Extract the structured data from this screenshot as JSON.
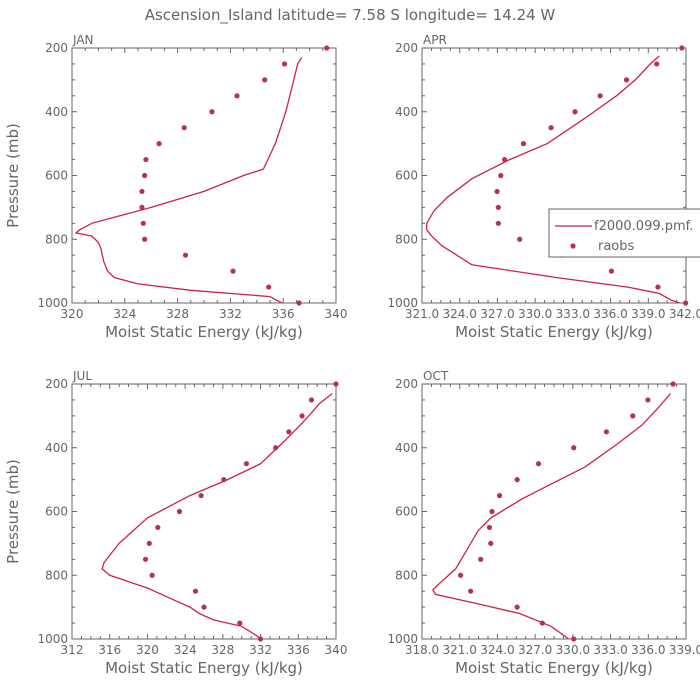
{
  "title": "Ascension_Island   latitude= 7.58 S longitude= 14.24 W",
  "colors": {
    "model": "#cc2244",
    "obs": "#b83058",
    "axis": "#666666"
  },
  "legend": {
    "panel": 1,
    "entries": [
      {
        "label": "f2000.099.pmf.",
        "marker": "line"
      },
      {
        "label": "raobs",
        "marker": "dot"
      }
    ]
  },
  "chart_data": [
    {
      "type": "line",
      "panel_label": "JAN",
      "xlabel": "Moist Static Energy (kJ/kg)",
      "ylabel": "Pressure (mb)",
      "xlim": [
        320,
        340
      ],
      "ylim": [
        1000,
        200
      ],
      "xticks": [
        320,
        324,
        328,
        332,
        336,
        340
      ],
      "xtick_labels": [
        "320",
        "324",
        "328",
        "332",
        "336",
        "340"
      ],
      "yticks": [
        200,
        400,
        600,
        800,
        1000
      ],
      "ytick_labels": [
        "200",
        "400",
        "600",
        "800",
        "1000"
      ],
      "series": [
        {
          "name": "f2000.099.pmf.",
          "style": "line",
          "x": [
            336.0,
            335.9,
            335.0,
            329.0,
            325.0,
            323.2,
            322.7,
            322.4,
            322.2,
            322.0,
            321.5,
            320.3,
            320.6,
            321.5,
            326.0,
            330.0,
            333.0,
            334.5,
            335.4,
            335.8,
            336.2,
            336.8,
            337.1,
            337.4
          ],
          "y": [
            1010,
            1000,
            980,
            960,
            940,
            920,
            900,
            870,
            830,
            810,
            790,
            780,
            770,
            750,
            700,
            650,
            600,
            580,
            500,
            450,
            400,
            300,
            250,
            230
          ]
        },
        {
          "name": "raobs",
          "style": "dots",
          "x": [
            337.2,
            334.9,
            332.2,
            328.6,
            325.5,
            325.4,
            325.3,
            325.3,
            325.5,
            325.6,
            326.6,
            328.5,
            330.6,
            332.5,
            334.6,
            336.1,
            339.3
          ],
          "y": [
            1000,
            950,
            900,
            850,
            800,
            750,
            700,
            650,
            600,
            550,
            500,
            450,
            400,
            350,
            300,
            250,
            200
          ]
        }
      ]
    },
    {
      "type": "line",
      "panel_label": "APR",
      "xlabel": "Moist Static Energy (kJ/kg)",
      "ylabel": "",
      "xlim": [
        321.03,
        342.03
      ],
      "ylim": [
        1000,
        200
      ],
      "xticks": [
        321.03,
        324.03,
        327.03,
        330.03,
        333.03,
        336.03,
        339.03,
        342.03
      ],
      "xtick_labels": [
        "321.0",
        "324.0",
        "327.0",
        "330.0",
        "333.0",
        "336.0",
        "339.0",
        "342.0"
      ],
      "yticks": [
        200,
        400,
        600,
        800,
        1000
      ],
      "ytick_labels": [
        "200",
        "400",
        "600",
        "800",
        "1000"
      ],
      "series": [
        {
          "name": "f2000.099.pmf.",
          "style": "line",
          "x": [
            342.0,
            341.5,
            340.8,
            339.9,
            337.4,
            331.7,
            325.0,
            322.6,
            321.8,
            321.4,
            321.4,
            322.0,
            323.0,
            325.0,
            328.0,
            331.0,
            334.0,
            336.5,
            338.0,
            339.2,
            339.9
          ],
          "y": [
            1005,
            1000,
            990,
            970,
            950,
            920,
            880,
            820,
            790,
            770,
            750,
            710,
            670,
            610,
            550,
            500,
            420,
            350,
            300,
            250,
            225
          ]
        },
        {
          "name": "raobs",
          "style": "dots",
          "x": [
            342.0,
            339.8,
            336.1,
            332.2,
            328.8,
            327.1,
            327.1,
            327.0,
            327.3,
            327.6,
            329.1,
            331.3,
            333.2,
            335.2,
            337.3,
            339.7,
            341.7
          ],
          "y": [
            1000,
            950,
            900,
            850,
            800,
            750,
            700,
            650,
            600,
            550,
            500,
            450,
            400,
            350,
            300,
            250,
            200
          ]
        }
      ]
    },
    {
      "type": "line",
      "panel_label": "JUL",
      "xlabel": "Moist Static Energy (kJ/kg)",
      "ylabel": "Pressure (mb)",
      "xlim": [
        312,
        340
      ],
      "ylim": [
        1000,
        200
      ],
      "xticks": [
        312,
        316,
        320,
        324,
        328,
        332,
        336,
        340
      ],
      "xtick_labels": [
        "312",
        "316",
        "320",
        "324",
        "328",
        "332",
        "336",
        "340"
      ],
      "yticks": [
        200,
        400,
        600,
        800,
        1000
      ],
      "ytick_labels": [
        "200",
        "400",
        "600",
        "800",
        "1000"
      ],
      "series": [
        {
          "name": "f2000.099.pmf.",
          "style": "line",
          "x": [
            332.0,
            331.6,
            330.0,
            327.0,
            325.5,
            324.5,
            323.0,
            320.0,
            316.0,
            315.2,
            315.4,
            317.0,
            320.0,
            324.5,
            328.5,
            332.0,
            334.5,
            336.5,
            338.3,
            339.6
          ],
          "y": [
            1000,
            990,
            960,
            940,
            920,
            900,
            880,
            840,
            800,
            780,
            760,
            700,
            620,
            550,
            500,
            450,
            380,
            320,
            260,
            230
          ]
        },
        {
          "name": "raobs",
          "style": "dots",
          "x": [
            332.0,
            329.8,
            326.0,
            325.1,
            320.5,
            319.8,
            320.2,
            321.1,
            323.4,
            325.7,
            328.1,
            330.5,
            333.6,
            335.0,
            336.4,
            337.4,
            340.0
          ],
          "y": [
            1000,
            950,
            900,
            850,
            800,
            750,
            700,
            650,
            600,
            550,
            500,
            450,
            400,
            350,
            300,
            250,
            200
          ]
        }
      ]
    },
    {
      "type": "line",
      "panel_label": "OCT",
      "xlabel": "Moist Static Energy (kJ/kg)",
      "ylabel": "",
      "xlim": [
        318.03,
        339.03
      ],
      "ylim": [
        1000,
        200
      ],
      "xticks": [
        318.03,
        321.03,
        324.03,
        327.03,
        330.03,
        333.03,
        336.03,
        339.03
      ],
      "xtick_labels": [
        "318.0",
        "321.0",
        "324.0",
        "327.0",
        "330.0",
        "333.0",
        "336.0",
        "339.0"
      ],
      "yticks": [
        200,
        400,
        600,
        800,
        1000
      ],
      "ytick_labels": [
        "200",
        "400",
        "600",
        "800",
        "1000"
      ],
      "series": [
        {
          "name": "f2000.099.pmf.",
          "style": "line",
          "x": [
            330.1,
            329.7,
            328.3,
            325.8,
            322.5,
            319.1,
            318.9,
            319.3,
            320.7,
            321.6,
            322.5,
            323.5,
            326.0,
            328.5,
            331.0,
            333.5,
            335.5,
            336.7,
            337.8
          ],
          "y": [
            1005,
            1000,
            960,
            920,
            890,
            860,
            845,
            830,
            780,
            720,
            660,
            620,
            560,
            510,
            460,
            390,
            330,
            280,
            230
          ]
        },
        {
          "name": "raobs",
          "style": "dots",
          "x": [
            330.1,
            327.6,
            325.6,
            321.9,
            321.1,
            322.7,
            323.5,
            323.4,
            323.6,
            324.2,
            325.6,
            327.3,
            330.1,
            332.7,
            334.8,
            336.0,
            338.0
          ],
          "y": [
            1000,
            950,
            900,
            850,
            800,
            750,
            700,
            650,
            600,
            550,
            500,
            450,
            400,
            350,
            300,
            250,
            200
          ]
        }
      ]
    }
  ]
}
